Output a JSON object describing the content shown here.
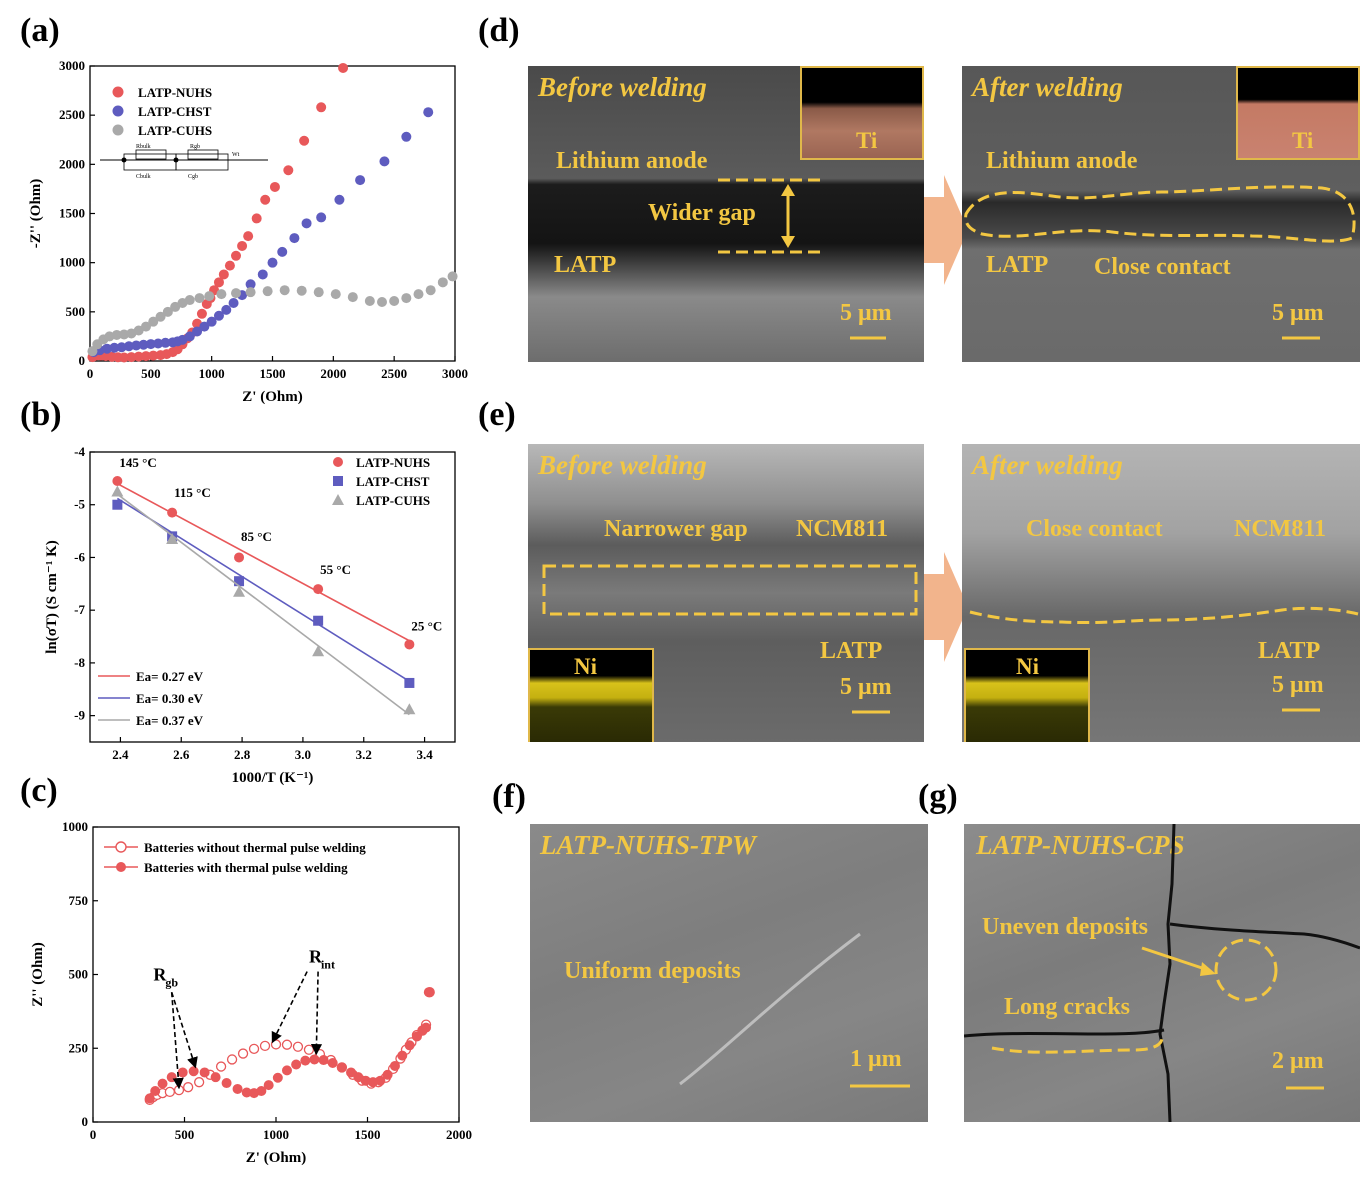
{
  "panel_labels": {
    "a": "(a)",
    "b": "(b)",
    "c": "(c)",
    "d": "(d)",
    "e": "(e)",
    "f": "(f)",
    "g": "(g)"
  },
  "colors": {
    "nuhs": "#e8585a",
    "chst": "#5e5cbf",
    "cuhs": "#a9a9a9",
    "sem_text": "#f3c742",
    "arrow": "#f2b48c"
  },
  "chart_data": [
    {
      "id": "a",
      "type": "scatter",
      "xlabel": "Z' (Ohm)",
      "ylabel": "-Z'' (Ohm)",
      "xlim": [
        0,
        3000
      ],
      "ylim": [
        0,
        3000
      ],
      "xticks": [
        0,
        500,
        1000,
        1500,
        2000,
        2500,
        3000
      ],
      "yticks": [
        0,
        500,
        1000,
        1500,
        2000,
        2500,
        3000
      ],
      "circuit_labels": [
        "Rbulk",
        "Rgb",
        "Wt",
        "Cbulk",
        "Cgb"
      ],
      "series": [
        {
          "name": "LATP-NUHS",
          "color": "#e8585a",
          "points": [
            [
              20,
              40
            ],
            [
              50,
              55
            ],
            [
              90,
              55
            ],
            [
              130,
              50
            ],
            [
              180,
              42
            ],
            [
              230,
              38
            ],
            [
              280,
              36
            ],
            [
              340,
              40
            ],
            [
              400,
              45
            ],
            [
              460,
              50
            ],
            [
              520,
              55
            ],
            [
              580,
              60
            ],
            [
              630,
              70
            ],
            [
              680,
              90
            ],
            [
              720,
              120
            ],
            [
              760,
              170
            ],
            [
              800,
              230
            ],
            [
              840,
              290
            ],
            [
              880,
              380
            ],
            [
              920,
              480
            ],
            [
              960,
              580
            ],
            [
              990,
              640
            ],
            [
              1020,
              720
            ],
            [
              1060,
              800
            ],
            [
              1100,
              880
            ],
            [
              1150,
              970
            ],
            [
              1200,
              1070
            ],
            [
              1250,
              1170
            ],
            [
              1300,
              1270
            ],
            [
              1370,
              1450
            ],
            [
              1440,
              1640
            ],
            [
              1520,
              1770
            ],
            [
              1630,
              1940
            ],
            [
              1760,
              2240
            ],
            [
              1900,
              2580
            ],
            [
              2080,
              2980
            ]
          ]
        },
        {
          "name": "LATP-CHST",
          "color": "#5e5cbf",
          "points": [
            [
              30,
              90
            ],
            [
              80,
              110
            ],
            [
              140,
              125
            ],
            [
              200,
              135
            ],
            [
              260,
              140
            ],
            [
              320,
              150
            ],
            [
              380,
              158
            ],
            [
              440,
              165
            ],
            [
              500,
              172
            ],
            [
              560,
              178
            ],
            [
              620,
              185
            ],
            [
              680,
              190
            ],
            [
              720,
              200
            ],
            [
              760,
              215
            ],
            [
              820,
              250
            ],
            [
              880,
              300
            ],
            [
              940,
              350
            ],
            [
              1000,
              400
            ],
            [
              1060,
              460
            ],
            [
              1120,
              520
            ],
            [
              1180,
              590
            ],
            [
              1250,
              670
            ],
            [
              1320,
              780
            ],
            [
              1420,
              880
            ],
            [
              1500,
              1000
            ],
            [
              1580,
              1110
            ],
            [
              1680,
              1250
            ],
            [
              1780,
              1400
            ],
            [
              1900,
              1460
            ],
            [
              2050,
              1640
            ],
            [
              2220,
              1840
            ],
            [
              2420,
              2030
            ],
            [
              2600,
              2280
            ],
            [
              2780,
              2530
            ]
          ]
        },
        {
          "name": "LATP-CUHS",
          "color": "#a9a9a9",
          "points": [
            [
              20,
              100
            ],
            [
              60,
              170
            ],
            [
              110,
              220
            ],
            [
              160,
              250
            ],
            [
              220,
              265
            ],
            [
              280,
              270
            ],
            [
              340,
              280
            ],
            [
              400,
              310
            ],
            [
              460,
              350
            ],
            [
              520,
              400
            ],
            [
              580,
              450
            ],
            [
              640,
              500
            ],
            [
              700,
              550
            ],
            [
              760,
              590
            ],
            [
              820,
              620
            ],
            [
              900,
              640
            ],
            [
              980,
              660
            ],
            [
              1080,
              680
            ],
            [
              1200,
              690
            ],
            [
              1320,
              700
            ],
            [
              1460,
              710
            ],
            [
              1600,
              720
            ],
            [
              1740,
              715
            ],
            [
              1880,
              700
            ],
            [
              2020,
              680
            ],
            [
              2160,
              650
            ],
            [
              2300,
              610
            ],
            [
              2400,
              600
            ],
            [
              2500,
              610
            ],
            [
              2600,
              640
            ],
            [
              2700,
              680
            ],
            [
              2800,
              720
            ],
            [
              2900,
              800
            ],
            [
              2980,
              860
            ]
          ]
        }
      ]
    },
    {
      "id": "b",
      "type": "scatter",
      "xlabel": "1000/T (K⁻¹)",
      "ylabel": "ln(σT) (S cm⁻¹ K)",
      "xlim": [
        2.3,
        3.5
      ],
      "ylim": [
        -9.5,
        -4
      ],
      "xticks": [
        2.4,
        2.6,
        2.8,
        3.0,
        3.2,
        3.4
      ],
      "yticks": [
        -4,
        -5,
        -6,
        -7,
        -8,
        -9
      ],
      "temp_labels": [
        {
          "x": 2.39,
          "y": -4.55,
          "text": "145 °C"
        },
        {
          "x": 2.57,
          "y": -5.12,
          "text": "115 °C"
        },
        {
          "x": 2.79,
          "y": -5.95,
          "text": "85 °C"
        },
        {
          "x": 3.05,
          "y": -6.58,
          "text": "55 °C"
        },
        {
          "x": 3.35,
          "y": -7.65,
          "text": "25 °C"
        }
      ],
      "series": [
        {
          "name": "LATP-NUHS",
          "color": "#e8585a",
          "marker": "circle",
          "x": [
            2.39,
            2.57,
            2.79,
            3.05,
            3.35
          ],
          "y": [
            -4.55,
            -5.15,
            -6.0,
            -6.6,
            -7.65
          ],
          "fit_label": "Ea= 0.27 eV",
          "fit": [
            [
              2.39,
              -4.6
            ],
            [
              3.35,
              -7.58
            ]
          ]
        },
        {
          "name": "LATP-CHST",
          "color": "#5e5cbf",
          "marker": "square",
          "x": [
            2.39,
            2.57,
            2.79,
            3.05,
            3.35
          ],
          "y": [
            -5.0,
            -5.6,
            -6.45,
            -7.2,
            -8.38
          ],
          "fit_label": "Ea= 0.30 eV",
          "fit": [
            [
              2.39,
              -4.88
            ],
            [
              3.35,
              -8.35
            ]
          ]
        },
        {
          "name": "LATP-CUHS",
          "color": "#a9a9a9",
          "marker": "triangle",
          "x": [
            2.39,
            2.57,
            2.79,
            3.05,
            3.35
          ],
          "y": [
            -4.75,
            -5.65,
            -6.65,
            -7.78,
            -8.88
          ],
          "fit_label": "Ea= 0.37 eV",
          "fit": [
            [
              2.39,
              -4.8
            ],
            [
              3.35,
              -8.98
            ]
          ]
        }
      ]
    },
    {
      "id": "c",
      "type": "scatter",
      "xlabel": "Z' (Ohm)",
      "ylabel": "Z'' (Ohm)",
      "xlim": [
        0,
        2000
      ],
      "ylim": [
        0,
        1000
      ],
      "xticks": [
        0,
        500,
        1000,
        1500,
        2000
      ],
      "yticks": [
        0,
        250,
        500,
        750,
        1000
      ],
      "annotations": [
        {
          "text": "R",
          "sub": "gb"
        },
        {
          "text": "R",
          "sub": "int"
        }
      ],
      "series": [
        {
          "name": "Batteries without thermal pulse welding",
          "color": "#e8585a",
          "marker": "open-circle",
          "points": [
            [
              310,
              75
            ],
            [
              330,
              85
            ],
            [
              350,
              92
            ],
            [
              380,
              98
            ],
            [
              420,
              102
            ],
            [
              470,
              108
            ],
            [
              520,
              118
            ],
            [
              580,
              135
            ],
            [
              640,
              160
            ],
            [
              700,
              188
            ],
            [
              760,
              212
            ],
            [
              820,
              232
            ],
            [
              880,
              248
            ],
            [
              940,
              258
            ],
            [
              1000,
              263
            ],
            [
              1060,
              262
            ],
            [
              1120,
              255
            ],
            [
              1180,
              245
            ],
            [
              1240,
              230
            ],
            [
              1300,
              210
            ],
            [
              1360,
              185
            ],
            [
              1420,
              160
            ],
            [
              1470,
              140
            ],
            [
              1520,
              130
            ],
            [
              1560,
              135
            ],
            [
              1600,
              150
            ],
            [
              1640,
              180
            ],
            [
              1680,
              215
            ],
            [
              1710,
              245
            ],
            [
              1740,
              270
            ],
            [
              1770,
              295
            ],
            [
              1800,
              310
            ],
            [
              1820,
              330
            ],
            [
              1840,
              440
            ]
          ]
        },
        {
          "name": "Batteries with thermal pulse welding",
          "color": "#e8585a",
          "marker": "filled-circle",
          "points": [
            [
              310,
              80
            ],
            [
              340,
              105
            ],
            [
              380,
              130
            ],
            [
              430,
              152
            ],
            [
              490,
              168
            ],
            [
              550,
              172
            ],
            [
              610,
              168
            ],
            [
              670,
              152
            ],
            [
              730,
              132
            ],
            [
              790,
              112
            ],
            [
              840,
              100
            ],
            [
              880,
              98
            ],
            [
              920,
              105
            ],
            [
              960,
              125
            ],
            [
              1010,
              150
            ],
            [
              1060,
              175
            ],
            [
              1110,
              195
            ],
            [
              1160,
              208
            ],
            [
              1210,
              212
            ],
            [
              1260,
              210
            ],
            [
              1310,
              200
            ],
            [
              1360,
              185
            ],
            [
              1410,
              168
            ],
            [
              1450,
              152
            ],
            [
              1490,
              140
            ],
            [
              1530,
              135
            ],
            [
              1570,
              140
            ],
            [
              1610,
              160
            ],
            [
              1650,
              190
            ],
            [
              1690,
              225
            ],
            [
              1730,
              260
            ],
            [
              1770,
              290
            ],
            [
              1800,
              310
            ],
            [
              1820,
              320
            ],
            [
              1835,
              440
            ]
          ]
        }
      ]
    }
  ],
  "sem_d": {
    "left": {
      "title": "Before welding",
      "labels": [
        "Lithium anode",
        "Wider gap",
        "LATP"
      ],
      "inset_label": "Ti",
      "scale": "5 μm"
    },
    "right": {
      "title": "After welding",
      "labels": [
        "Lithium anode",
        "LATP",
        "Close contact"
      ],
      "inset_label": "Ti",
      "scale": "5 μm"
    }
  },
  "sem_e": {
    "left": {
      "title": "Before welding",
      "labels": [
        "Narrower gap",
        "NCM811",
        "LATP"
      ],
      "inset_label": "Ni",
      "scale": "5 μm"
    },
    "right": {
      "title": "After welding",
      "labels": [
        "Close contact",
        "NCM811",
        "LATP"
      ],
      "inset_label": "Ni",
      "scale": "5 μm"
    }
  },
  "sem_f": {
    "title": "LATP-NUHS-TPW",
    "label": "Uniform deposits",
    "scale": "1 μm"
  },
  "sem_g": {
    "title": "LATP-NUHS-CPS",
    "labels": [
      "Uneven deposits",
      "Long cracks"
    ],
    "scale": "2 μm"
  }
}
